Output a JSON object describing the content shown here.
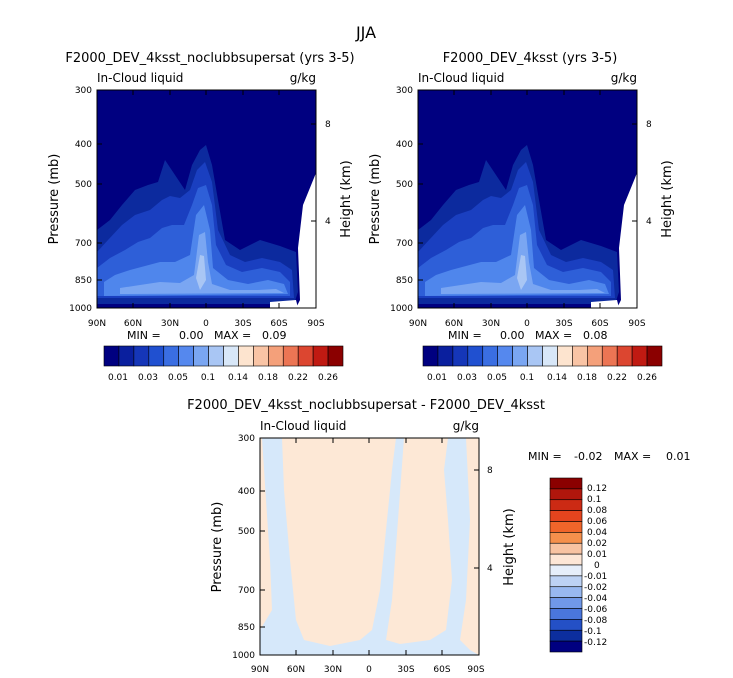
{
  "suptitle": "JJA",
  "chart_data": [
    {
      "type": "contour",
      "title": "F2000_DEV_4ksst_noclubbsupersat (yrs 3-5)",
      "subtitle_left": "In-Cloud liquid",
      "subtitle_right": "g/kg",
      "ylabel": "Pressure (mb)",
      "y2label": "Height (km)",
      "x_ticks": [
        "90N",
        "60N",
        "30N",
        "0",
        "30S",
        "60S",
        "90S"
      ],
      "y_ticks": [
        "300",
        "400",
        "500",
        "700",
        "850",
        "1000"
      ],
      "y2_ticks": [
        "8",
        "4"
      ],
      "stats": {
        "min_label": "MIN =",
        "min": "0.00",
        "max_label": "MAX =",
        "max": "0.09"
      },
      "colorbar_labels": [
        "0.01",
        "0.03",
        "0.05",
        "0.1",
        "0.14",
        "0.18",
        "0.22",
        "0.26"
      ]
    },
    {
      "type": "contour",
      "title": "F2000_DEV_4ksst (yrs 3-5)",
      "subtitle_left": "In-Cloud liquid",
      "subtitle_right": "g/kg",
      "ylabel": "Pressure (mb)",
      "y2label": "Height (km)",
      "x_ticks": [
        "90N",
        "60N",
        "30N",
        "0",
        "30S",
        "60S",
        "90S"
      ],
      "y_ticks": [
        "300",
        "400",
        "500",
        "700",
        "850",
        "1000"
      ],
      "y2_ticks": [
        "8",
        "4"
      ],
      "stats": {
        "min_label": "MIN =",
        "min": "0.00",
        "max_label": "MAX =",
        "max": "0.08"
      },
      "colorbar_labels": [
        "0.01",
        "0.03",
        "0.05",
        "0.1",
        "0.14",
        "0.18",
        "0.22",
        "0.26"
      ]
    },
    {
      "type": "contour",
      "title": "F2000_DEV_4ksst_noclubbsupersat - F2000_DEV_4ksst",
      "subtitle_left": "In-Cloud liquid",
      "subtitle_right": "g/kg",
      "ylabel": "Pressure (mb)",
      "y2label": "Height (km)",
      "x_ticks": [
        "90N",
        "60N",
        "30N",
        "0",
        "30S",
        "60S",
        "90S"
      ],
      "y_ticks": [
        "300",
        "400",
        "500",
        "700",
        "850",
        "1000"
      ],
      "y2_ticks": [
        "8",
        "4"
      ],
      "stats": {
        "min_label": "MIN =",
        "min": "-0.02",
        "max_label": "MAX =",
        "max": "0.01"
      },
      "colorbar_labels": [
        "0.12",
        "0.1",
        "0.08",
        "0.06",
        "0.04",
        "0.02",
        "0.01",
        "0",
        "-0.01",
        "-0.02",
        "-0.04",
        "-0.06",
        "-0.08",
        "-0.1",
        "-0.12"
      ]
    }
  ],
  "colors": {
    "seq": [
      "#000080",
      "#0a1f9e",
      "#1536b8",
      "#2050d0",
      "#3a6ee2",
      "#5588ee",
      "#7aa6f2",
      "#a9c6f4",
      "#d8e7f8",
      "#fde4cf",
      "#f9c4a5",
      "#f4a07a",
      "#ec7554",
      "#dc4630",
      "#c01a12",
      "#8b0000"
    ],
    "diff": [
      "#8b0000",
      "#b0160c",
      "#cc2a14",
      "#e4441e",
      "#f0652a",
      "#f5904c",
      "#f8c3a2",
      "#fde6d6",
      "#e6eefa",
      "#bdd2f4",
      "#98b8f0",
      "#7098e8",
      "#4a76dc",
      "#2450c6",
      "#0c2e9e",
      "#000080"
    ],
    "diff_bg": "#fde8d6",
    "diff_neg": "#d6e8fa"
  }
}
